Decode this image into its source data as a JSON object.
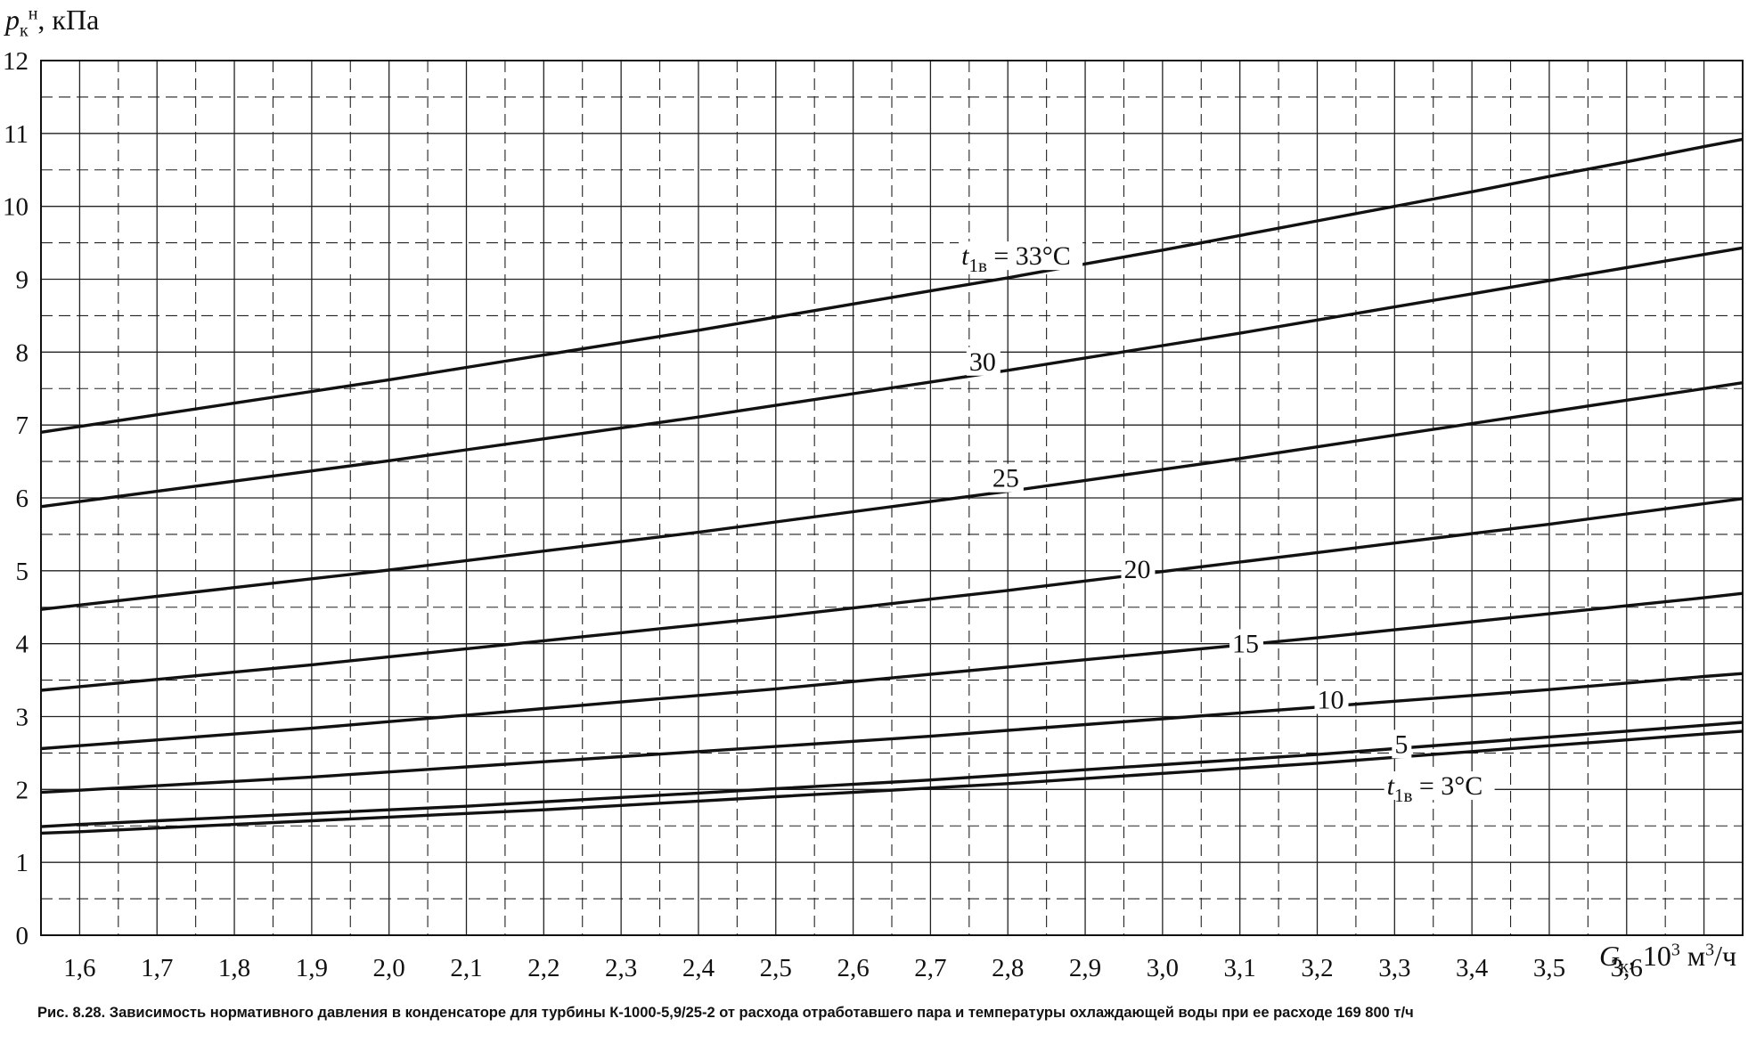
{
  "caption": "Рис. 8.28. Зависимость нормативного давления в конденсаторе для турбины К-1000-5,9/25-2 от расхода отработавшего пара и температуры охлаждающей воды при ее расходе 169 800 т/ч",
  "y_title": {
    "symbol": "p",
    "sub": "к",
    "sup": "н",
    "unit": ", кПа"
  },
  "x_title": {
    "symbol": "G",
    "sub": "к",
    "unit_pre": ", 10",
    "sup": "3",
    "unit_post": " м",
    "sup2": "3",
    "unit_end": "/ч"
  },
  "chart_data": {
    "type": "line",
    "xlabel": "Gк, 10³ м³/ч",
    "ylabel": "pкн, кПа",
    "xlim": [
      1.55,
      3.75
    ],
    "ylim": [
      0,
      12
    ],
    "x_ticks": [
      1.6,
      1.7,
      1.8,
      1.9,
      2.0,
      2.1,
      2.2,
      2.3,
      2.4,
      2.5,
      2.6,
      2.7,
      2.8,
      2.9,
      3.0,
      3.1,
      3.2,
      3.3,
      3.4,
      3.5,
      3.6
    ],
    "x_tick_labels": [
      "1,6",
      "1,7",
      "1,8",
      "1,9",
      "2,0",
      "2,1",
      "2,2",
      "2,3",
      "2,4",
      "2,5",
      "2,6",
      "2,7",
      "2,8",
      "2,9",
      "3,0",
      "3,1",
      "3,2",
      "3,3",
      "3,4",
      "3,5",
      "3,6"
    ],
    "y_ticks": [
      0,
      1,
      2,
      3,
      4,
      5,
      6,
      7,
      8,
      9,
      10,
      11,
      12
    ],
    "y_tick_labels": [
      "0",
      "1",
      "2",
      "3",
      "4",
      "5",
      "6",
      "7",
      "8",
      "9",
      "10",
      "11",
      "12"
    ],
    "grid": true,
    "x": [
      1.55,
      1.6,
      1.7,
      1.8,
      1.9,
      2.0,
      2.1,
      2.2,
      2.3,
      2.4,
      2.5,
      2.6,
      2.7,
      2.8,
      2.9,
      3.0,
      3.1,
      3.2,
      3.3,
      3.4,
      3.5,
      3.6,
      3.7,
      3.75
    ],
    "series": [
      {
        "label": "t1в = 33°C",
        "values": [
          6.9,
          6.98,
          7.14,
          7.3,
          7.46,
          7.62,
          7.79,
          7.96,
          8.13,
          8.3,
          8.48,
          8.66,
          8.84,
          9.02,
          9.21,
          9.4,
          9.6,
          9.8,
          10.0,
          10.2,
          10.41,
          10.61,
          10.82,
          10.92
        ]
      },
      {
        "label": "30",
        "values": [
          5.88,
          5.95,
          6.09,
          6.23,
          6.37,
          6.51,
          6.66,
          6.81,
          6.96,
          7.11,
          7.27,
          7.43,
          7.59,
          7.75,
          7.92,
          8.09,
          8.26,
          8.44,
          8.62,
          8.8,
          8.98,
          9.16,
          9.34,
          9.43
        ]
      },
      {
        "label": "25",
        "values": [
          4.47,
          4.53,
          4.65,
          4.77,
          4.89,
          5.01,
          5.14,
          5.27,
          5.4,
          5.53,
          5.67,
          5.81,
          5.95,
          6.09,
          6.24,
          6.39,
          6.54,
          6.7,
          6.86,
          7.02,
          7.18,
          7.34,
          7.5,
          7.58
        ]
      },
      {
        "label": "20",
        "values": [
          3.36,
          3.41,
          3.51,
          3.61,
          3.71,
          3.82,
          3.93,
          4.04,
          4.15,
          4.26,
          4.37,
          4.49,
          4.61,
          4.73,
          4.86,
          4.99,
          5.12,
          5.25,
          5.38,
          5.51,
          5.64,
          5.78,
          5.92,
          5.99
        ]
      },
      {
        "label": "15",
        "values": [
          2.56,
          2.6,
          2.68,
          2.76,
          2.84,
          2.93,
          3.02,
          3.11,
          3.2,
          3.29,
          3.38,
          3.48,
          3.58,
          3.68,
          3.78,
          3.88,
          3.98,
          4.08,
          4.19,
          4.3,
          4.41,
          4.52,
          4.63,
          4.69
        ]
      },
      {
        "label": "10",
        "values": [
          1.96,
          1.99,
          2.05,
          2.11,
          2.17,
          2.24,
          2.31,
          2.38,
          2.45,
          2.52,
          2.59,
          2.66,
          2.73,
          2.81,
          2.89,
          2.97,
          3.05,
          3.13,
          3.21,
          3.29,
          3.37,
          3.46,
          3.55,
          3.59
        ]
      },
      {
        "label": "5",
        "values": [
          1.49,
          1.52,
          1.57,
          1.62,
          1.67,
          1.72,
          1.77,
          1.83,
          1.89,
          1.95,
          2.01,
          2.07,
          2.13,
          2.2,
          2.27,
          2.34,
          2.41,
          2.48,
          2.56,
          2.64,
          2.72,
          2.8,
          2.88,
          2.92
        ]
      },
      {
        "label": "t1в = 3°C",
        "values": [
          1.4,
          1.42,
          1.47,
          1.52,
          1.57,
          1.62,
          1.67,
          1.72,
          1.78,
          1.84,
          1.9,
          1.96,
          2.02,
          2.08,
          2.15,
          2.22,
          2.29,
          2.36,
          2.44,
          2.52,
          2.6,
          2.68,
          2.76,
          2.8
        ]
      }
    ],
    "curve_labels": [
      {
        "text": "t1в = 33°C",
        "symbol": "t",
        "sub": "1в",
        "rest": " = 33°C",
        "x": 2.74,
        "y": 9.2
      },
      {
        "text": "30",
        "x": 2.75,
        "y": 7.75
      },
      {
        "text": "25",
        "x": 2.78,
        "y": 6.15
      },
      {
        "text": "20",
        "x": 2.95,
        "y": 4.9
      },
      {
        "text": "15",
        "x": 3.09,
        "y": 3.88
      },
      {
        "text": "10",
        "x": 3.2,
        "y": 3.11
      },
      {
        "text": "5",
        "x": 3.3,
        "y": 2.5
      },
      {
        "text": "t1в = 3°C",
        "symbol": "t",
        "sub": "1в",
        "rest": " = 3°C",
        "x": 3.29,
        "y": 1.93
      }
    ]
  }
}
